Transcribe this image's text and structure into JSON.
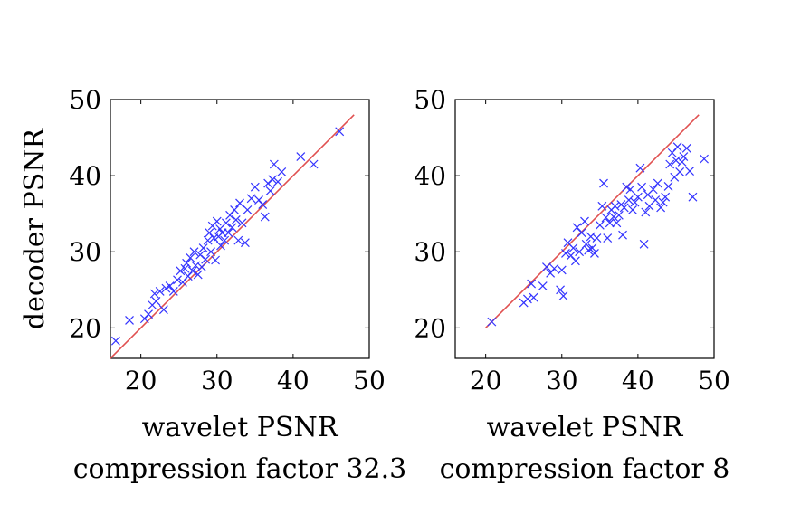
{
  "chart_data": [
    {
      "type": "scatter",
      "xlabel": "wavelet PSNR",
      "subtitle": "compression factor 32.3",
      "ylabel": "decoder PSNR",
      "xlim": [
        16,
        50
      ],
      "ylim": [
        16,
        50
      ],
      "xticks": [
        "20",
        "30",
        "40",
        "50"
      ],
      "yticks": [
        "20",
        "30",
        "40",
        "50"
      ],
      "grid": false,
      "marker_color": "#3333ff",
      "reference_line": {
        "x": [
          16,
          48
        ],
        "y": [
          16,
          48
        ],
        "color": "#e05050"
      },
      "points": [
        [
          16.7,
          18.3
        ],
        [
          18.5,
          21.0
        ],
        [
          20.5,
          21.2
        ],
        [
          21.0,
          21.8
        ],
        [
          21.5,
          23.0
        ],
        [
          21.8,
          24.5
        ],
        [
          22.0,
          23.5
        ],
        [
          22.5,
          24.8
        ],
        [
          23.0,
          22.4
        ],
        [
          23.3,
          25.2
        ],
        [
          23.8,
          25.5
        ],
        [
          24.3,
          24.8
        ],
        [
          24.8,
          26.3
        ],
        [
          25.2,
          27.5
        ],
        [
          25.5,
          26.0
        ],
        [
          25.8,
          27.8
        ],
        [
          26.0,
          28.5
        ],
        [
          26.2,
          26.8
        ],
        [
          26.5,
          29.2
        ],
        [
          26.8,
          27.5
        ],
        [
          27.0,
          30.0
        ],
        [
          27.2,
          28.2
        ],
        [
          27.5,
          27.0
        ],
        [
          27.8,
          29.6
        ],
        [
          28.0,
          28.0
        ],
        [
          28.2,
          30.5
        ],
        [
          28.5,
          29.0
        ],
        [
          28.8,
          31.5
        ],
        [
          29.0,
          32.5
        ],
        [
          29.2,
          30.0
        ],
        [
          29.4,
          33.4
        ],
        [
          29.6,
          31.8
        ],
        [
          29.8,
          28.9
        ],
        [
          30.0,
          34.0
        ],
        [
          30.2,
          32.0
        ],
        [
          30.4,
          33.0
        ],
        [
          30.5,
          30.8
        ],
        [
          30.7,
          32.5
        ],
        [
          31.0,
          31.5
        ],
        [
          31.2,
          33.8
        ],
        [
          31.5,
          32.5
        ],
        [
          31.7,
          34.8
        ],
        [
          32.0,
          33.2
        ],
        [
          32.3,
          35.5
        ],
        [
          32.5,
          34.2
        ],
        [
          32.8,
          31.5
        ],
        [
          33.0,
          36.4
        ],
        [
          33.3,
          33.8
        ],
        [
          33.7,
          31.2
        ],
        [
          34.0,
          35.5
        ],
        [
          34.5,
          37.0
        ],
        [
          35.0,
          38.5
        ],
        [
          35.5,
          36.8
        ],
        [
          36.0,
          36.2
        ],
        [
          36.3,
          34.6
        ],
        [
          36.7,
          39.0
        ],
        [
          37.0,
          38.0
        ],
        [
          37.3,
          39.5
        ],
        [
          37.5,
          41.5
        ],
        [
          38.0,
          39.2
        ],
        [
          38.5,
          40.5
        ],
        [
          41.0,
          42.5
        ],
        [
          42.7,
          41.5
        ],
        [
          46.1,
          45.8
        ]
      ]
    },
    {
      "type": "scatter",
      "xlabel": "wavelet PSNR",
      "subtitle": "compression factor 8",
      "ylabel": "",
      "xlim": [
        16,
        50
      ],
      "ylim": [
        16,
        50
      ],
      "xticks": [
        "20",
        "30",
        "40",
        "50"
      ],
      "yticks": [
        "20",
        "30",
        "40",
        "50"
      ],
      "grid": false,
      "marker_color": "#3333ff",
      "reference_line": {
        "x": [
          20,
          48
        ],
        "y": [
          20,
          48
        ],
        "color": "#e05050"
      },
      "points": [
        [
          20.8,
          20.8
        ],
        [
          25.0,
          23.3
        ],
        [
          25.5,
          23.8
        ],
        [
          26.0,
          25.8
        ],
        [
          26.3,
          24.0
        ],
        [
          27.5,
          25.5
        ],
        [
          28.0,
          28.0
        ],
        [
          28.5,
          27.2
        ],
        [
          29.0,
          27.8
        ],
        [
          29.8,
          25.0
        ],
        [
          30.0,
          27.6
        ],
        [
          30.2,
          24.2
        ],
        [
          30.5,
          29.8
        ],
        [
          30.8,
          31.2
        ],
        [
          31.2,
          29.5
        ],
        [
          31.5,
          30.5
        ],
        [
          31.8,
          28.8
        ],
        [
          32.0,
          33.2
        ],
        [
          32.3,
          30.0
        ],
        [
          32.6,
          32.5
        ],
        [
          33.0,
          34.0
        ],
        [
          33.2,
          31.0
        ],
        [
          33.5,
          30.2
        ],
        [
          33.8,
          32.0
        ],
        [
          34.0,
          30.5
        ],
        [
          34.3,
          29.8
        ],
        [
          34.6,
          31.8
        ],
        [
          35.0,
          33.5
        ],
        [
          35.3,
          36.0
        ],
        [
          35.5,
          39.0
        ],
        [
          35.8,
          34.5
        ],
        [
          36.0,
          31.8
        ],
        [
          36.3,
          33.8
        ],
        [
          36.5,
          35.5
        ],
        [
          36.8,
          34.6
        ],
        [
          37.0,
          36.0
        ],
        [
          37.2,
          33.8
        ],
        [
          37.5,
          34.8
        ],
        [
          37.8,
          36.2
        ],
        [
          38.0,
          32.2
        ],
        [
          38.2,
          35.8
        ],
        [
          38.5,
          38.5
        ],
        [
          38.8,
          36.8
        ],
        [
          39.0,
          38.2
        ],
        [
          39.3,
          35.5
        ],
        [
          39.6,
          36.5
        ],
        [
          40.0,
          37.2
        ],
        [
          40.3,
          41.0
        ],
        [
          40.5,
          38.5
        ],
        [
          40.8,
          31.0
        ],
        [
          41.0,
          35.2
        ],
        [
          41.3,
          37.5
        ],
        [
          41.5,
          36.0
        ],
        [
          42.0,
          38.2
        ],
        [
          42.3,
          36.8
        ],
        [
          42.6,
          39.0
        ],
        [
          43.0,
          35.8
        ],
        [
          43.3,
          36.5
        ],
        [
          43.6,
          37.2
        ],
        [
          44.0,
          38.6
        ],
        [
          44.2,
          41.5
        ],
        [
          44.5,
          43.0
        ],
        [
          44.8,
          39.8
        ],
        [
          45.0,
          42.0
        ],
        [
          45.2,
          43.8
        ],
        [
          45.5,
          40.5
        ],
        [
          45.8,
          41.8
        ],
        [
          46.0,
          42.5
        ],
        [
          46.4,
          43.6
        ],
        [
          46.8,
          40.6
        ],
        [
          47.2,
          37.2
        ],
        [
          48.7,
          42.2
        ]
      ]
    }
  ]
}
